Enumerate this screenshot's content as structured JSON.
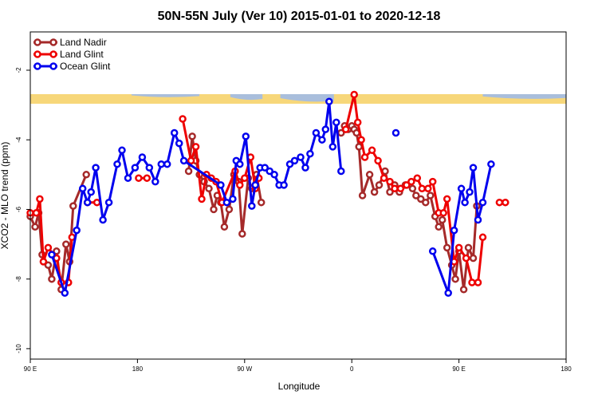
{
  "chart_data": {
    "type": "line",
    "title": "50N-55N July (Ver 10)   2015-01-01 to 2020-12-18",
    "xlabel": "Longitude",
    "ylabel": "XCO2 - MLO trend (ppm)",
    "x_ticks": [
      {
        "value": 90,
        "label": "90 E"
      },
      {
        "value": 180,
        "label": "180"
      },
      {
        "value": 270,
        "label": "90 W"
      },
      {
        "value": 360,
        "label": "0"
      },
      {
        "value": 450,
        "label": "90 E"
      },
      {
        "value": 540,
        "label": "180"
      }
    ],
    "y_ticks": [
      -2,
      -4,
      -6,
      -8,
      -10
    ],
    "xlim": [
      90,
      540
    ],
    "ylim": [
      -10.3,
      -0.9
    ],
    "legend_position": "top-left",
    "land_strip_colors": {
      "land": "#f7d77a",
      "ocean": "#a9bedc"
    },
    "series": [
      {
        "name": "Land Nadir",
        "color": "#a52a2a",
        "segments": [
          [
            [
              90,
              -6.2
            ],
            [
              94,
              -6.5
            ],
            [
              97,
              -6.1
            ],
            [
              100,
              -7.3
            ],
            [
              105,
              -7.6
            ],
            [
              108,
              -8.0
            ],
            [
              112,
              -7.2
            ],
            [
              116,
              -8.3
            ],
            [
              120,
              -7.0
            ],
            [
              123,
              -7.5
            ],
            [
              126,
              -5.9
            ],
            [
              137,
              -5.0
            ]
          ],
          [
            [
              223,
              -4.9
            ],
            [
              226,
              -3.9
            ],
            [
              229,
              -4.6
            ],
            [
              232,
              -5.0
            ],
            [
              236,
              -5.2
            ],
            [
              240,
              -5.4
            ],
            [
              244,
              -6.0
            ],
            [
              247,
              -5.6
            ],
            [
              250,
              -5.8
            ],
            [
              253,
              -6.5
            ],
            [
              257,
              -6.0
            ],
            [
              261,
              -5.0
            ],
            [
              265,
              -5.2
            ],
            [
              268,
              -6.7
            ],
            [
              273,
              -5.1
            ],
            [
              276,
              -5.4
            ],
            [
              280,
              -5.0
            ],
            [
              284,
              -5.8
            ]
          ],
          [
            [
              351,
              -3.8
            ],
            [
              354,
              -3.6
            ],
            [
              357,
              -3.7
            ],
            [
              360,
              -3.6
            ],
            [
              362,
              -3.7
            ],
            [
              364,
              -3.8
            ],
            [
              366,
              -4.2
            ],
            [
              369,
              -5.6
            ],
            [
              375,
              -5.0
            ],
            [
              379,
              -5.5
            ],
            [
              383,
              -5.3
            ],
            [
              388,
              -4.9
            ],
            [
              392,
              -5.5
            ],
            [
              396,
              -5.3
            ],
            [
              400,
              -5.5
            ],
            [
              405,
              -5.3
            ],
            [
              411,
              -5.4
            ],
            [
              414,
              -5.6
            ],
            [
              418,
              -5.7
            ],
            [
              422,
              -5.8
            ],
            [
              426,
              -5.6
            ],
            [
              430,
              -6.2
            ],
            [
              433,
              -6.5
            ],
            [
              436,
              -6.3
            ],
            [
              440,
              -7.1
            ],
            [
              444,
              -7.6
            ],
            [
              447,
              -8.0
            ],
            [
              450,
              -7.2
            ],
            [
              454,
              -8.3
            ],
            [
              458,
              -7.1
            ],
            [
              462,
              -7.4
            ],
            [
              465,
              -5.9
            ]
          ]
        ]
      },
      {
        "name": "Land Glint",
        "color": "#ee0000",
        "segments": [
          [
            [
              90,
              -6.1
            ],
            [
              95,
              -6.1
            ],
            [
              98,
              -5.7
            ],
            [
              101,
              -7.5
            ],
            [
              105,
              -7.1
            ],
            [
              112,
              -7.4
            ],
            [
              116,
              -8.1
            ],
            [
              122,
              -8.1
            ],
            [
              125,
              -6.8
            ]
          ],
          [
            [
              138,
              -5.8
            ],
            [
              146,
              -5.8
            ]
          ],
          [
            [
              181,
              -5.1
            ],
            [
              188,
              -5.1
            ]
          ],
          [
            [
              218,
              -3.4
            ],
            [
              225,
              -4.6
            ],
            [
              229,
              -4.2
            ],
            [
              234,
              -5.7
            ],
            [
              238,
              -5.0
            ],
            [
              242,
              -5.1
            ],
            [
              246,
              -5.2
            ],
            [
              251,
              -5.8
            ],
            [
              262,
              -4.9
            ],
            [
              266,
              -5.3
            ],
            [
              270,
              -5.1
            ],
            [
              275,
              -4.5
            ],
            [
              279,
              -5.4
            ],
            [
              282,
              -5.1
            ]
          ],
          [
            [
              355,
              -3.7
            ],
            [
              362,
              -2.7
            ],
            [
              365,
              -3.5
            ],
            [
              368,
              -4.0
            ],
            [
              371,
              -4.5
            ],
            [
              377,
              -4.3
            ],
            [
              382,
              -4.6
            ],
            [
              387,
              -5.1
            ],
            [
              392,
              -5.2
            ],
            [
              396,
              -5.4
            ],
            [
              401,
              -5.4
            ],
            [
              406,
              -5.3
            ],
            [
              410,
              -5.2
            ],
            [
              415,
              -5.1
            ],
            [
              419,
              -5.4
            ],
            [
              424,
              -5.4
            ],
            [
              428,
              -5.2
            ],
            [
              433,
              -6.1
            ],
            [
              437,
              -6.1
            ],
            [
              440,
              -5.7
            ],
            [
              446,
              -7.5
            ],
            [
              450,
              -7.1
            ],
            [
              456,
              -7.4
            ],
            [
              461,
              -8.1
            ],
            [
              466,
              -8.1
            ],
            [
              470,
              -6.8
            ]
          ],
          [
            [
              484,
              -5.8
            ],
            [
              489,
              -5.8
            ]
          ]
        ]
      },
      {
        "name": "Ocean Glint",
        "color": "#0000ee",
        "segments": [
          [
            [
              108,
              -7.3
            ],
            [
              119,
              -8.4
            ],
            [
              129,
              -6.6
            ],
            [
              134,
              -5.4
            ],
            [
              138,
              -5.8
            ],
            [
              141,
              -5.5
            ],
            [
              145,
              -4.8
            ],
            [
              151,
              -6.3
            ],
            [
              156,
              -5.8
            ],
            [
              163,
              -4.7
            ],
            [
              167,
              -4.3
            ],
            [
              172,
              -5.1
            ],
            [
              178,
              -4.8
            ],
            [
              184,
              -4.5
            ],
            [
              190,
              -4.8
            ],
            [
              195,
              -5.2
            ],
            [
              200,
              -4.7
            ],
            [
              205,
              -4.7
            ],
            [
              211,
              -3.8
            ],
            [
              215,
              -4.1
            ],
            [
              219,
              -4.6
            ],
            [
              250,
              -5.3
            ],
            [
              255,
              -5.8
            ],
            [
              260,
              -5.7
            ],
            [
              263,
              -4.6
            ],
            [
              266,
              -4.7
            ],
            [
              271,
              -3.9
            ],
            [
              276,
              -5.9
            ],
            [
              279,
              -5.3
            ],
            [
              283,
              -4.8
            ],
            [
              287,
              -4.8
            ],
            [
              291,
              -4.9
            ],
            [
              295,
              -5.0
            ],
            [
              299,
              -5.3
            ],
            [
              303,
              -5.3
            ],
            [
              308,
              -4.7
            ],
            [
              312,
              -4.6
            ],
            [
              317,
              -4.5
            ],
            [
              321,
              -4.8
            ],
            [
              325,
              -4.4
            ],
            [
              330,
              -3.8
            ],
            [
              335,
              -4.0
            ],
            [
              338,
              -3.7
            ],
            [
              341,
              -2.9
            ],
            [
              344,
              -4.2
            ],
            [
              347,
              -3.5
            ],
            [
              351,
              -4.9
            ]
          ],
          [
            [
              397,
              -3.8
            ]
          ],
          [
            [
              428,
              -7.2
            ],
            [
              441,
              -8.4
            ],
            [
              446,
              -6.6
            ],
            [
              452,
              -5.4
            ],
            [
              455,
              -5.8
            ],
            [
              459,
              -5.5
            ],
            [
              462,
              -4.8
            ],
            [
              466,
              -6.3
            ],
            [
              470,
              -5.8
            ],
            [
              477,
              -4.7
            ]
          ]
        ]
      }
    ]
  }
}
